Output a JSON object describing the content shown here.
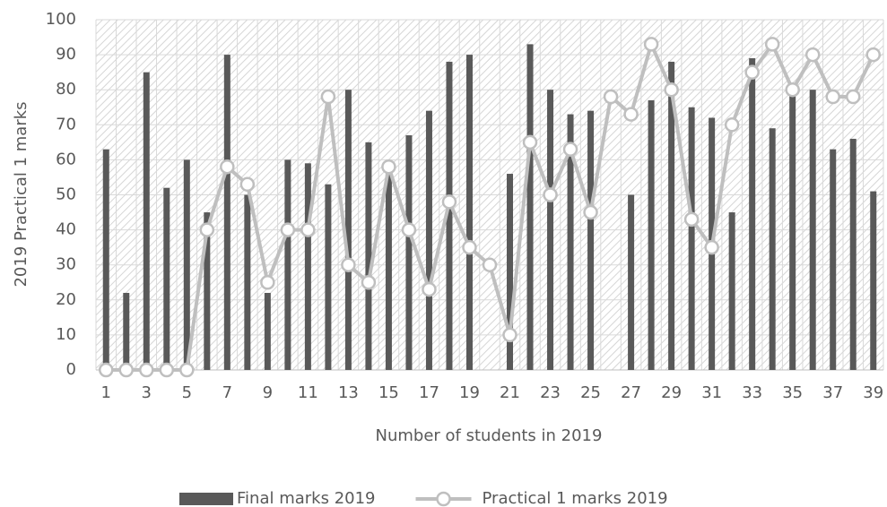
{
  "chart_data": {
    "type": "bar",
    "x_label": "Number of students in 2019",
    "y_label": "2019 Practical 1 marks",
    "categories": [
      1,
      null,
      3,
      null,
      5,
      null,
      7,
      null,
      9,
      null,
      11,
      null,
      13,
      null,
      15,
      null,
      17,
      null,
      19,
      null,
      21,
      null,
      23,
      null,
      25,
      null,
      27,
      null,
      29,
      null,
      31,
      null,
      33,
      null,
      35,
      null,
      37,
      null,
      39
    ],
    "series": [
      {
        "name": "Final marks 2019",
        "type": "bar",
        "color": "#595959",
        "values": [
          63,
          22,
          85,
          52,
          60,
          45,
          90,
          50,
          22,
          60,
          59,
          53,
          80,
          65,
          57,
          67,
          74,
          88,
          90,
          0,
          56,
          93,
          80,
          73,
          74,
          0,
          50,
          77,
          88,
          75,
          72,
          45,
          89,
          69,
          80,
          80,
          63,
          66,
          51
        ]
      },
      {
        "name": "Practical 1 marks 2019",
        "type": "line",
        "color": "#bfbfbf",
        "values": [
          0,
          0,
          0,
          0,
          0,
          40,
          58,
          53,
          25,
          40,
          40,
          78,
          30,
          25,
          58,
          40,
          23,
          48,
          35,
          30,
          10,
          65,
          50,
          63,
          45,
          78,
          73,
          93,
          80,
          43,
          35,
          70,
          85,
          93,
          80,
          90,
          78,
          78,
          90
        ]
      }
    ],
    "ylim": [
      0,
      100
    ],
    "yticks": [
      0,
      10,
      20,
      30,
      40,
      50,
      60,
      70,
      80,
      90,
      100
    ],
    "grid": true,
    "legend": "bottom"
  }
}
